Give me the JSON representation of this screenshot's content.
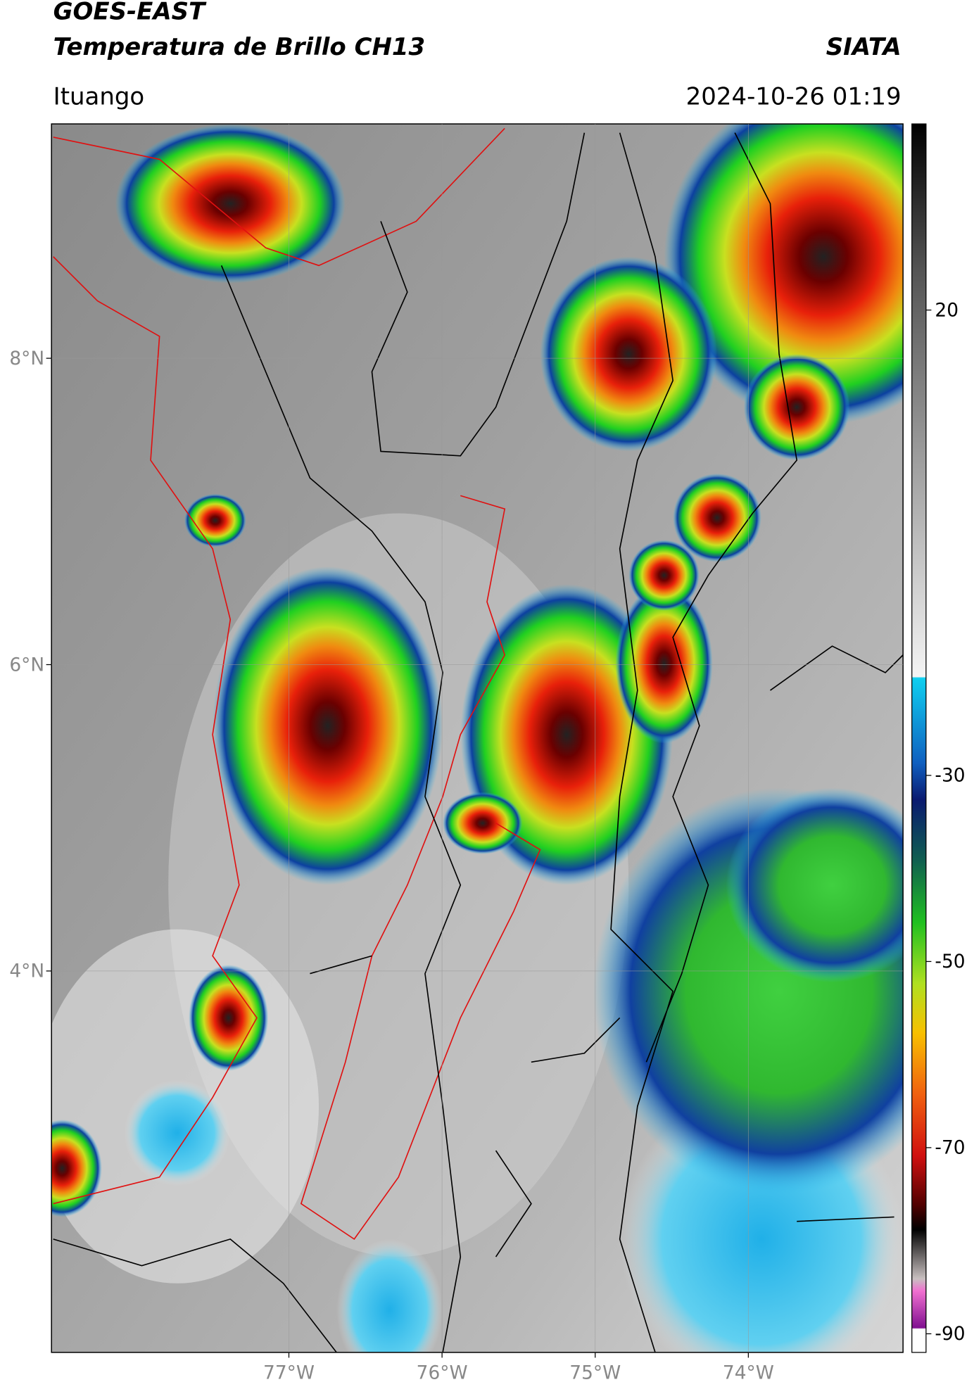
{
  "header": {
    "title": "GOES-EAST",
    "subtitle": "Temperatura de Brillo CH13",
    "brand": "SIATA",
    "location": "Ituango",
    "datetime": "2024-10-26 01:19"
  },
  "map": {
    "lonlim": [
      -78.55,
      -72.99
    ],
    "latlim": [
      1.51,
      9.53
    ],
    "lonticks": [
      {
        "value": -77,
        "label": "77°W"
      },
      {
        "value": -76,
        "label": "76°W"
      },
      {
        "value": -75,
        "label": "75°W"
      },
      {
        "value": -74,
        "label": "74°W"
      }
    ],
    "latticks": [
      {
        "value": 8,
        "label": "8°N"
      },
      {
        "value": 6,
        "label": "6°N"
      },
      {
        "value": 4,
        "label": "4°N"
      }
    ],
    "grid": true
  },
  "colorbar": {
    "lim": [
      -92,
      40
    ],
    "ticks": [
      20,
      -30,
      -50,
      -70,
      -90
    ]
  }
}
